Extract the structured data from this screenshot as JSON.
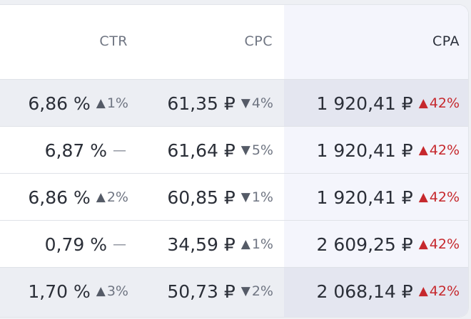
{
  "table": {
    "headers": {
      "ctr": "CTR",
      "cpc": "CPC",
      "cpa": "CPA"
    },
    "rows": [
      {
        "ctr": "6,86 %",
        "ctr_dir": "up",
        "ctr_arrow": "▲",
        "ctr_delta": "1%",
        "cpc": "61,35 ₽",
        "cpc_dir": "down",
        "cpc_arrow": "▼",
        "cpc_delta": "4%",
        "cpa": "1 920,41 ₽",
        "cpa_dir": "up",
        "cpa_arrow": "▲",
        "cpa_delta": "42%"
      },
      {
        "ctr": "6,87 %",
        "ctr_dir": "none",
        "ctr_arrow": "",
        "ctr_delta": "—",
        "cpc": "61,64 ₽",
        "cpc_dir": "down",
        "cpc_arrow": "▼",
        "cpc_delta": "5%",
        "cpa": "1 920,41 ₽",
        "cpa_dir": "up",
        "cpa_arrow": "▲",
        "cpa_delta": "42%"
      },
      {
        "ctr": "6,86 %",
        "ctr_dir": "up",
        "ctr_arrow": "▲",
        "ctr_delta": "2%",
        "cpc": "60,85 ₽",
        "cpc_dir": "down",
        "cpc_arrow": "▼",
        "cpc_delta": "1%",
        "cpa": "1 920,41 ₽",
        "cpa_dir": "up",
        "cpa_arrow": "▲",
        "cpa_delta": "42%"
      },
      {
        "ctr": "0,79 %",
        "ctr_dir": "none",
        "ctr_arrow": "",
        "ctr_delta": "—",
        "cpc": "34,59 ₽",
        "cpc_dir": "up",
        "cpc_arrow": "▲",
        "cpc_delta": "1%",
        "cpa": "2 609,25 ₽",
        "cpa_dir": "up",
        "cpa_arrow": "▲",
        "cpa_delta": "42%"
      },
      {
        "ctr": "1,70 %",
        "ctr_dir": "up",
        "ctr_arrow": "▲",
        "ctr_delta": "3%",
        "cpc": "50,73 ₽",
        "cpc_dir": "down",
        "cpc_arrow": "▼",
        "cpc_delta": "2%",
        "cpa": "2 068,14 ₽",
        "cpa_dir": "up",
        "cpa_arrow": "▲",
        "cpa_delta": "42%"
      }
    ]
  },
  "colors": {
    "negative": "#c6282d",
    "neutral": "#555b67",
    "highlight_column": "#f4f5fc"
  }
}
